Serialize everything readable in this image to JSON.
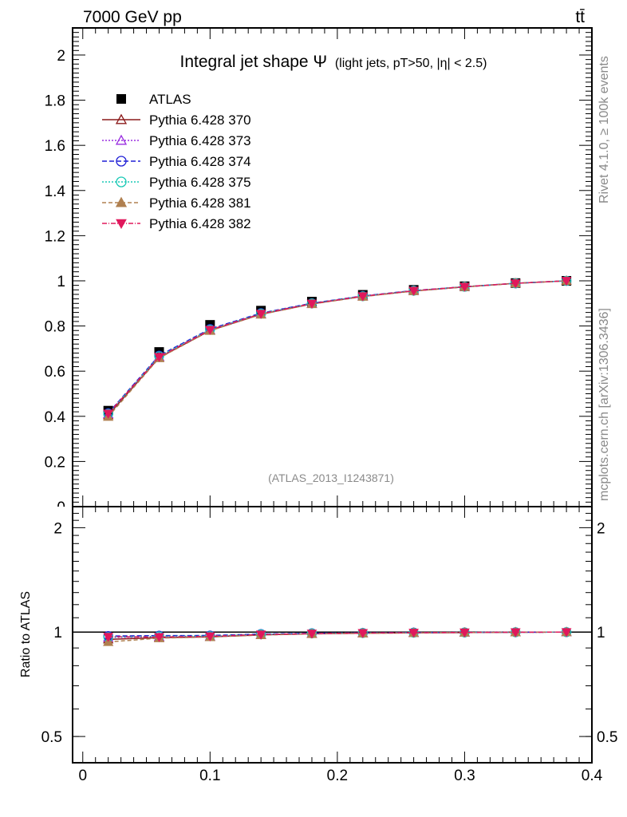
{
  "header": {
    "left": "7000 GeV pp",
    "right": "tt̄"
  },
  "side_labels": {
    "rivet": "Rivet 4.1.0, ≥ 100k events",
    "mcplots": "mcplots.cern.ch [arXiv:1306.3436]"
  },
  "chart_data": {
    "type": "line",
    "title_main": "Integral jet shape Ψ",
    "title_sub": "(light jets, pT>50, |η| < 2.5)",
    "watermark": "(ATLAS_2013_I1243871)",
    "x": [
      0.02,
      0.06,
      0.1,
      0.14,
      0.18,
      0.22,
      0.26,
      0.3,
      0.34,
      0.38
    ],
    "xlim": [
      -0.008,
      0.4
    ],
    "ylim": [
      0,
      2.12
    ],
    "ratio_ylabel": "Ratio to ATLAS",
    "ratio_ylim": [
      0.42,
      2.3
    ],
    "x_tick_labels": [
      "0",
      "0.1",
      "0.2",
      "0.3",
      "0.4"
    ],
    "y_tick_labels": [
      "0.2",
      "0.4",
      "0.6",
      "0.8",
      "1",
      "1.2",
      "1.4",
      "1.6",
      "1.8",
      "2"
    ],
    "ratio_tick_labels": [
      "0.5",
      "1",
      "2"
    ],
    "data": {
      "name": "ATLAS",
      "color": "#000000",
      "values": [
        0.425,
        0.685,
        0.805,
        0.868,
        0.908,
        0.938,
        0.96,
        0.976,
        0.99,
        1.0
      ]
    },
    "series": [
      {
        "name": "Pythia 6.428 370",
        "color": "#8b1a1a",
        "marker": "triangle-up-open",
        "dash": "",
        "values": [
          0.405,
          0.66,
          0.78,
          0.852,
          0.898,
          0.931,
          0.955,
          0.973,
          0.989,
          1.0
        ]
      },
      {
        "name": "Pythia 6.428 373",
        "color": "#9a2fe0",
        "marker": "triangle-up-open",
        "dash": "2,2",
        "values": [
          0.41,
          0.664,
          0.782,
          0.853,
          0.899,
          0.932,
          0.956,
          0.973,
          0.989,
          1.0
        ]
      },
      {
        "name": "Pythia 6.428 374",
        "color": "#1f1fd6",
        "marker": "circle-open",
        "dash": "6,3",
        "values": [
          0.414,
          0.669,
          0.787,
          0.857,
          0.901,
          0.933,
          0.957,
          0.974,
          0.989,
          1.0
        ]
      },
      {
        "name": "Pythia 6.428 375",
        "color": "#18c9b5",
        "marker": "circle-open",
        "dash": "2,2",
        "values": [
          0.411,
          0.666,
          0.784,
          0.855,
          0.9,
          0.932,
          0.956,
          0.974,
          0.989,
          1.0
        ]
      },
      {
        "name": "Pythia 6.428 381",
        "color": "#b08050",
        "marker": "triangle-up",
        "dash": "5,3",
        "values": [
          0.398,
          0.658,
          0.779,
          0.851,
          0.897,
          0.93,
          0.955,
          0.973,
          0.989,
          1.0
        ]
      },
      {
        "name": "Pythia 6.428 382",
        "color": "#e0185c",
        "marker": "triangle-down",
        "dash": "6,2,1,2",
        "values": [
          0.412,
          0.663,
          0.783,
          0.854,
          0.899,
          0.932,
          0.956,
          0.974,
          0.989,
          1.0
        ]
      }
    ]
  }
}
